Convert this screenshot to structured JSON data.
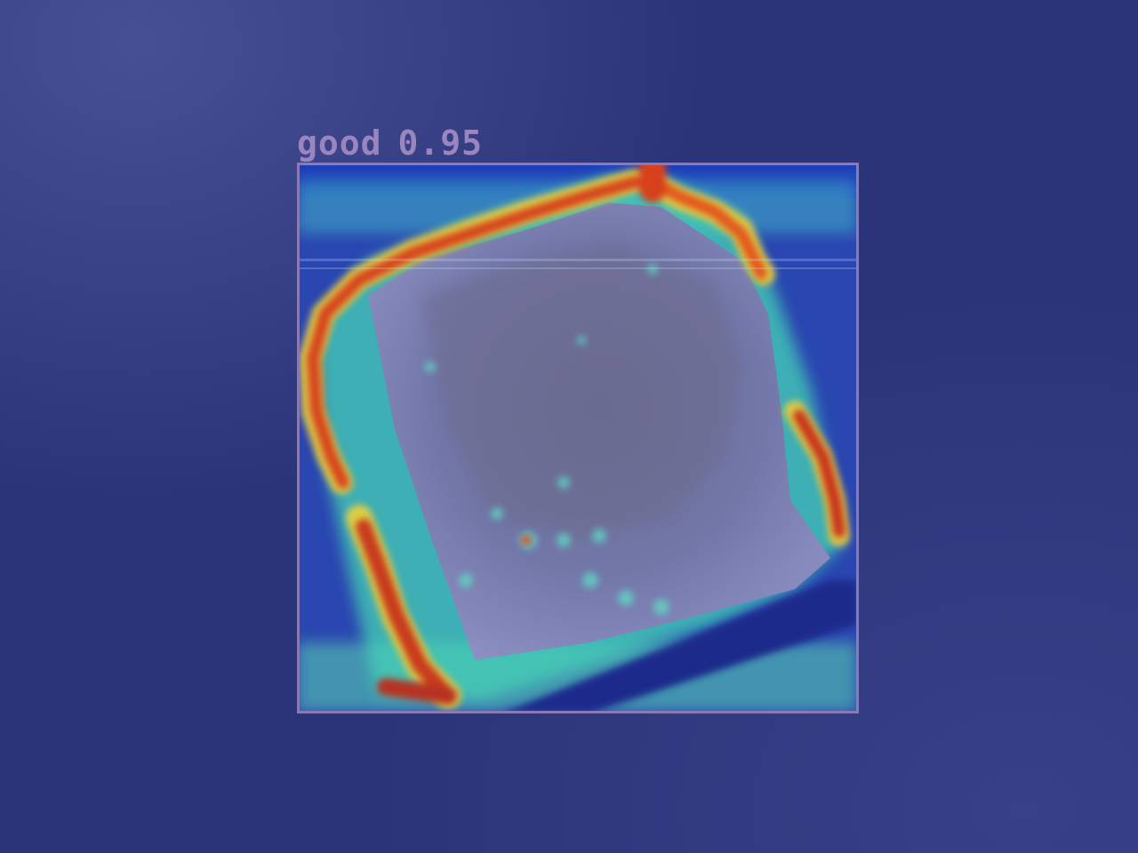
{
  "detection": {
    "class_label": "good",
    "confidence": "0.95",
    "box_color": "#8a79b6",
    "label_color": "#9b85bf"
  },
  "overlay": {
    "type": "class-activation-heatmap",
    "colormap": "jet",
    "background_color": "#2c3479"
  }
}
